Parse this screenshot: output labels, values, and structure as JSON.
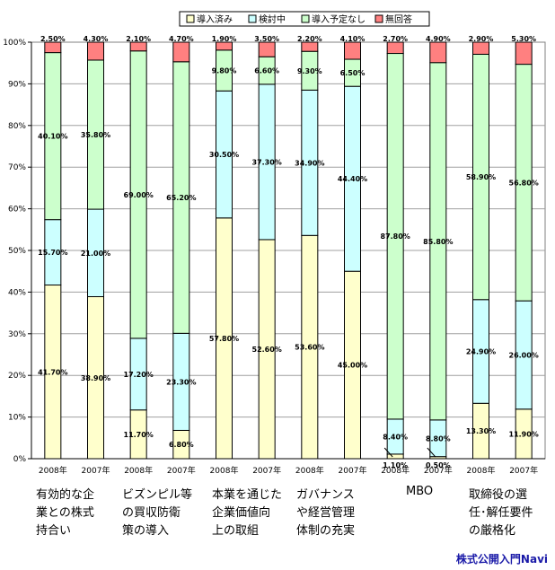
{
  "colors": {
    "導入済み": "#ffffcc",
    "検討中": "#ccffff",
    "導入予定なし": "#ccffcc",
    "無回答": "#ff8080"
  },
  "chart_data": {
    "type": "bar",
    "stacked": true,
    "categories": [
      "2008年",
      "2007年",
      "2008年",
      "2007年",
      "2008年",
      "2007年",
      "2008年",
      "2007年",
      "2008年",
      "2007年",
      "2008年",
      "2007年"
    ],
    "groups": [
      "有効的な企\n業との株式\n持合い",
      "ビズンピル等\nの買収防衛\n策の導入",
      "本業を通じた\n企業価値向\n上の取組",
      "ガバナンス\nや経営管理\n体制の充実",
      "MBO",
      "取締役の選\n任･解任要件\nの厳格化"
    ],
    "series": [
      {
        "name": "導入済み",
        "values": [
          41.7,
          38.9,
          11.7,
          6.8,
          57.8,
          52.6,
          53.6,
          45.0,
          1.1,
          0.5,
          13.3,
          11.9
        ]
      },
      {
        "name": "検討中",
        "values": [
          15.7,
          21.0,
          17.2,
          23.3,
          30.5,
          37.3,
          34.9,
          44.4,
          8.4,
          8.8,
          24.9,
          26.0
        ]
      },
      {
        "name": "導入予定なし",
        "values": [
          40.1,
          35.8,
          69.0,
          65.2,
          9.8,
          6.6,
          9.3,
          6.5,
          87.8,
          85.8,
          58.9,
          56.8
        ]
      },
      {
        "name": "無回答",
        "values": [
          2.5,
          4.3,
          2.1,
          4.7,
          1.9,
          3.5,
          2.2,
          4.1,
          2.7,
          4.9,
          2.9,
          5.3
        ]
      }
    ],
    "data_labels": [
      [
        "41.70%",
        "38.90%",
        "11.70%",
        "6.80%",
        "57.80%",
        "52.60%",
        "53.60%",
        "45.00%",
        "1.10%",
        "0.50%",
        "13.30%",
        "11.90%"
      ],
      [
        "15.70%",
        "21.00%",
        "17.20%",
        "23.30%",
        "30.50%",
        "37.30%",
        "34.90%",
        "44.40%",
        "8.40%",
        "8.80%",
        "24.90%",
        "26.00%"
      ],
      [
        "40.10%",
        "35.80%",
        "69.00%",
        "65.20%",
        "9.80%",
        "6.60%",
        "9.30%",
        "6.50%",
        "87.80%",
        "85.80%",
        "58.90%",
        "56.80%"
      ],
      [
        "2.50%",
        "4.30%",
        "2.10%",
        "4.70%",
        "1.90%",
        "3.50%",
        "2.20%",
        "4.10%",
        "2.70%",
        "4.90%",
        "2.90%",
        "5.30%"
      ]
    ],
    "yticks": [
      "0%",
      "10%",
      "20%",
      "30%",
      "40%",
      "50%",
      "60%",
      "70%",
      "80%",
      "90%",
      "100%"
    ],
    "ylim": [
      0,
      100
    ],
    "legend_position": "top",
    "grid": true
  },
  "credit": "株式公開入門Navi"
}
